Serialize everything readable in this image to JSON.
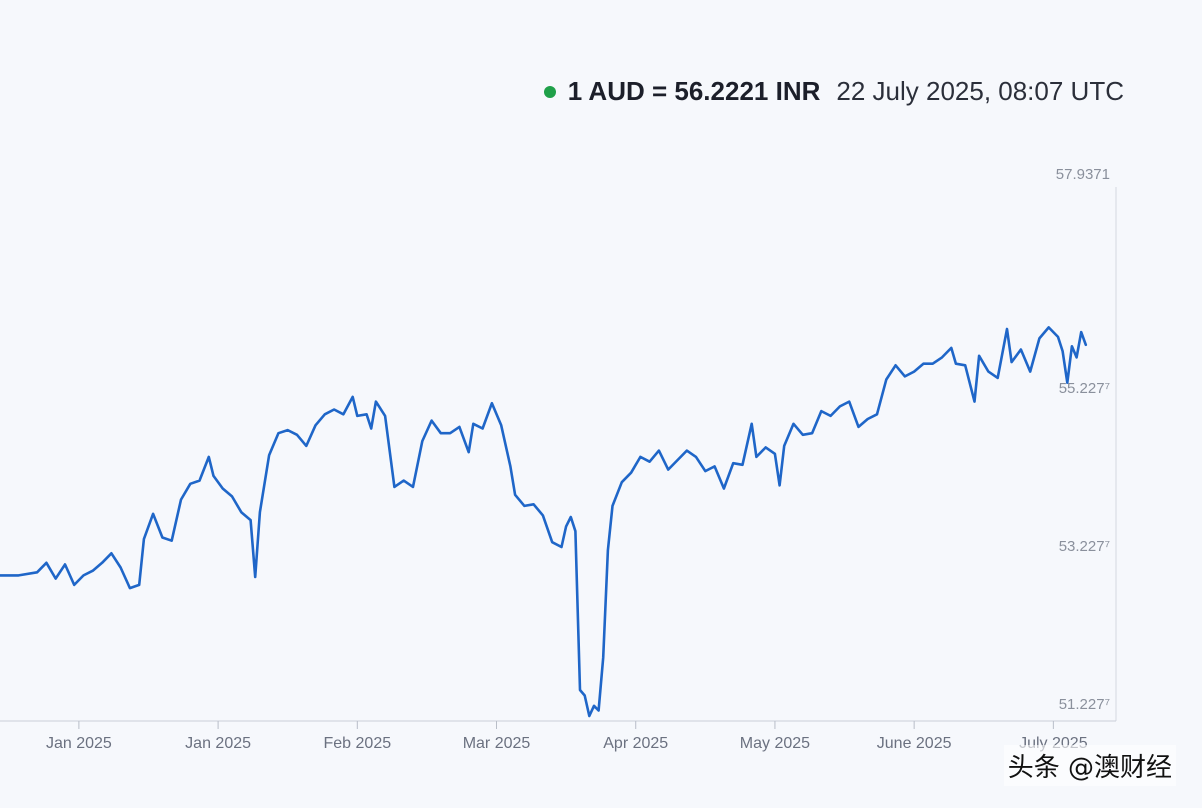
{
  "header": {
    "rate_text": "1 AUD = 56.2221 INR",
    "timestamp": "22 July 2025, 08:07 UTC",
    "status_color": "#1fa049"
  },
  "watermark": "头条 @澳财经",
  "chart_data": {
    "type": "line",
    "title": "",
    "xlabel": "",
    "ylabel": "",
    "line_color": "#1f66c8",
    "ylim": [
      51.2277,
      57.9371
    ],
    "y_ticks": [
      {
        "value": 57.9371,
        "label": "57.9371"
      },
      {
        "value": 55.2277,
        "label": "55.227⁷"
      },
      {
        "value": 53.2277,
        "label": "53.227⁷"
      },
      {
        "value": 51.2277,
        "label": "51.227⁷"
      }
    ],
    "x_ticks": [
      {
        "x": 15,
        "label": "Jan 2025"
      },
      {
        "x": 45,
        "label": "Jan 2025"
      },
      {
        "x": 75,
        "label": "Feb 2025"
      },
      {
        "x": 105,
        "label": "Mar 2025"
      },
      {
        "x": 135,
        "label": "Apr 2025"
      },
      {
        "x": 165,
        "label": "May 2025"
      },
      {
        "x": 195,
        "label": "June 2025"
      },
      {
        "x": 225,
        "label": "July 2025"
      }
    ],
    "series": [
      {
        "values": [
          [
            -2,
            53.02
          ],
          [
            2,
            53.02
          ],
          [
            6,
            53.06
          ],
          [
            8,
            53.18
          ],
          [
            10,
            52.98
          ],
          [
            12,
            53.16
          ],
          [
            14,
            52.9
          ],
          [
            16,
            53.02
          ],
          [
            18,
            53.08
          ],
          [
            20,
            53.18
          ],
          [
            22,
            53.3
          ],
          [
            24,
            53.12
          ],
          [
            26,
            52.86
          ],
          [
            28,
            52.9
          ],
          [
            29,
            53.48
          ],
          [
            31,
            53.8
          ],
          [
            33,
            53.5
          ],
          [
            35,
            53.46
          ],
          [
            37,
            53.98
          ],
          [
            39,
            54.18
          ],
          [
            41,
            54.22
          ],
          [
            43,
            54.52
          ],
          [
            44,
            54.28
          ],
          [
            46,
            54.12
          ],
          [
            48,
            54.02
          ],
          [
            50,
            53.82
          ],
          [
            52,
            53.72
          ],
          [
            53,
            53.0
          ],
          [
            54,
            53.82
          ],
          [
            56,
            54.54
          ],
          [
            58,
            54.82
          ],
          [
            60,
            54.86
          ],
          [
            62,
            54.8
          ],
          [
            64,
            54.66
          ],
          [
            66,
            54.92
          ],
          [
            68,
            55.06
          ],
          [
            70,
            55.12
          ],
          [
            72,
            55.06
          ],
          [
            74,
            55.28
          ],
          [
            75,
            55.04
          ],
          [
            77,
            55.06
          ],
          [
            78,
            54.88
          ],
          [
            79,
            55.22
          ],
          [
            81,
            55.04
          ],
          [
            83,
            54.14
          ],
          [
            85,
            54.22
          ],
          [
            87,
            54.14
          ],
          [
            89,
            54.72
          ],
          [
            91,
            54.98
          ],
          [
            93,
            54.82
          ],
          [
            95,
            54.82
          ],
          [
            97,
            54.9
          ],
          [
            99,
            54.58
          ],
          [
            100,
            54.94
          ],
          [
            102,
            54.88
          ],
          [
            104,
            55.2
          ],
          [
            106,
            54.92
          ],
          [
            108,
            54.4
          ],
          [
            109,
            54.04
          ],
          [
            111,
            53.9
          ],
          [
            113,
            53.92
          ],
          [
            115,
            53.78
          ],
          [
            117,
            53.44
          ],
          [
            119,
            53.38
          ],
          [
            120,
            53.64
          ],
          [
            121,
            53.76
          ],
          [
            122,
            53.58
          ],
          [
            123,
            51.57
          ],
          [
            124,
            51.5
          ],
          [
            125,
            51.24
          ],
          [
            126,
            51.37
          ],
          [
            127,
            51.31
          ],
          [
            128,
            51.98
          ],
          [
            129,
            53.34
          ],
          [
            130,
            53.9
          ],
          [
            132,
            54.2
          ],
          [
            134,
            54.32
          ],
          [
            136,
            54.52
          ],
          [
            138,
            54.46
          ],
          [
            140,
            54.6
          ],
          [
            142,
            54.36
          ],
          [
            144,
            54.48
          ],
          [
            146,
            54.6
          ],
          [
            148,
            54.52
          ],
          [
            150,
            54.34
          ],
          [
            152,
            54.4
          ],
          [
            154,
            54.12
          ],
          [
            156,
            54.44
          ],
          [
            158,
            54.42
          ],
          [
            160,
            54.94
          ],
          [
            161,
            54.52
          ],
          [
            163,
            54.64
          ],
          [
            165,
            54.56
          ],
          [
            166,
            54.16
          ],
          [
            167,
            54.66
          ],
          [
            169,
            54.94
          ],
          [
            171,
            54.8
          ],
          [
            173,
            54.82
          ],
          [
            175,
            55.1
          ],
          [
            177,
            55.04
          ],
          [
            179,
            55.16
          ],
          [
            181,
            55.22
          ],
          [
            183,
            54.9
          ],
          [
            185,
            55.0
          ],
          [
            187,
            55.06
          ],
          [
            189,
            55.5
          ],
          [
            191,
            55.68
          ],
          [
            193,
            55.54
          ],
          [
            195,
            55.6
          ],
          [
            197,
            55.7
          ],
          [
            199,
            55.7
          ],
          [
            201,
            55.78
          ],
          [
            203,
            55.9
          ],
          [
            204,
            55.7
          ],
          [
            206,
            55.68
          ],
          [
            208,
            55.22
          ],
          [
            209,
            55.8
          ],
          [
            211,
            55.6
          ],
          [
            213,
            55.52
          ],
          [
            215,
            56.14
          ],
          [
            216,
            55.72
          ],
          [
            218,
            55.88
          ],
          [
            220,
            55.6
          ],
          [
            222,
            56.02
          ],
          [
            224,
            56.16
          ],
          [
            226,
            56.04
          ],
          [
            227,
            55.86
          ],
          [
            228,
            55.46
          ],
          [
            229,
            55.92
          ],
          [
            230,
            55.78
          ],
          [
            231,
            56.1
          ],
          [
            232,
            55.94
          ]
        ]
      }
    ]
  }
}
